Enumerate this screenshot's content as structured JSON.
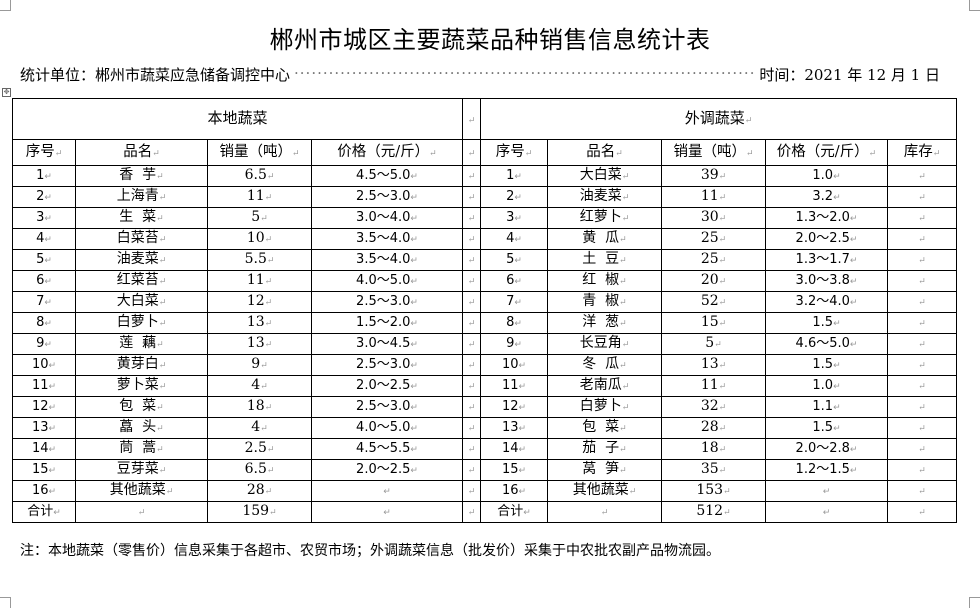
{
  "title": "郴州市城区主要蔬菜品种销售信息统计表",
  "unit_label": "统计单位：郴州市蔬菜应急储备调控中心",
  "date_label": "时间：2021 年 12 月 1 日",
  "local": {
    "group_label": "本地蔬菜",
    "headers": [
      "序号",
      "品名",
      "销量（吨）",
      "价格（元/斤）"
    ],
    "rows": [
      [
        "1",
        "香  芋",
        "6.5",
        "4.5～5.0"
      ],
      [
        "2",
        "上海青",
        "11",
        "2.5～3.0"
      ],
      [
        "3",
        "生  菜",
        "5",
        "3.0～4.0"
      ],
      [
        "4",
        "白菜苔",
        "10",
        "3.5～4.0"
      ],
      [
        "5",
        "油麦菜",
        "5.5",
        "3.5～4.0"
      ],
      [
        "6",
        "红菜苔",
        "11",
        "4.0～5.0"
      ],
      [
        "7",
        "大白菜",
        "12",
        "2.5～3.0"
      ],
      [
        "8",
        "白萝卜",
        "13",
        "1.5～2.0"
      ],
      [
        "9",
        "莲  藕",
        "13",
        "3.0～4.5"
      ],
      [
        "10",
        "黄芽白",
        "9",
        "2.5～3.0"
      ],
      [
        "11",
        "萝卜菜",
        "4",
        "2.0～2.5"
      ],
      [
        "12",
        "包  菜",
        "18",
        "2.5～3.0"
      ],
      [
        "13",
        "藠  头",
        "4",
        "4.0～5.0"
      ],
      [
        "14",
        "茼  蒿",
        "2.5",
        "4.5～5.5"
      ],
      [
        "15",
        "豆芽菜",
        "6.5",
        "2.0～2.5"
      ],
      [
        "16",
        "其他蔬菜",
        "28",
        ""
      ]
    ],
    "total": [
      "合计",
      "",
      "159",
      ""
    ]
  },
  "external": {
    "group_label": "外调蔬菜",
    "headers": [
      "序号",
      "品名",
      "销量（吨）",
      "价格（元/斤）",
      "库存"
    ],
    "rows": [
      [
        "1",
        "大白菜",
        "39",
        "1.0",
        ""
      ],
      [
        "2",
        "油麦菜",
        "11",
        "3.2",
        ""
      ],
      [
        "3",
        "红萝卜",
        "30",
        "1.3～2.0",
        ""
      ],
      [
        "4",
        "黄  瓜",
        "25",
        "2.0～2.5",
        ""
      ],
      [
        "5",
        "土  豆",
        "25",
        "1.3～1.7",
        ""
      ],
      [
        "6",
        "红  椒",
        "20",
        "3.0～3.8",
        ""
      ],
      [
        "7",
        "青  椒",
        "52",
        "3.2～4.0",
        ""
      ],
      [
        "8",
        "洋  葱",
        "15",
        "1.5",
        ""
      ],
      [
        "9",
        "长豆角",
        "5",
        "4.6～5.0",
        ""
      ],
      [
        "10",
        "冬  瓜",
        "13",
        "1.5",
        ""
      ],
      [
        "11",
        "老南瓜",
        "11",
        "1.0",
        ""
      ],
      [
        "12",
        "白萝卜",
        "32",
        "1.1",
        ""
      ],
      [
        "13",
        "包  菜",
        "28",
        "1.5",
        ""
      ],
      [
        "14",
        "茄  子",
        "18",
        "2.0～2.8",
        ""
      ],
      [
        "15",
        "莴  笋",
        "35",
        "1.2～1.5",
        ""
      ],
      [
        "16",
        "其他蔬菜",
        "153",
        "",
        ""
      ]
    ],
    "total": [
      "合计",
      "",
      "512",
      "",
      ""
    ]
  },
  "note": "注：本地蔬菜（零售价）信息采集于各超市、农贸市场；外调蔬菜信息（批发价）采集于中农批农副产品物流园。"
}
